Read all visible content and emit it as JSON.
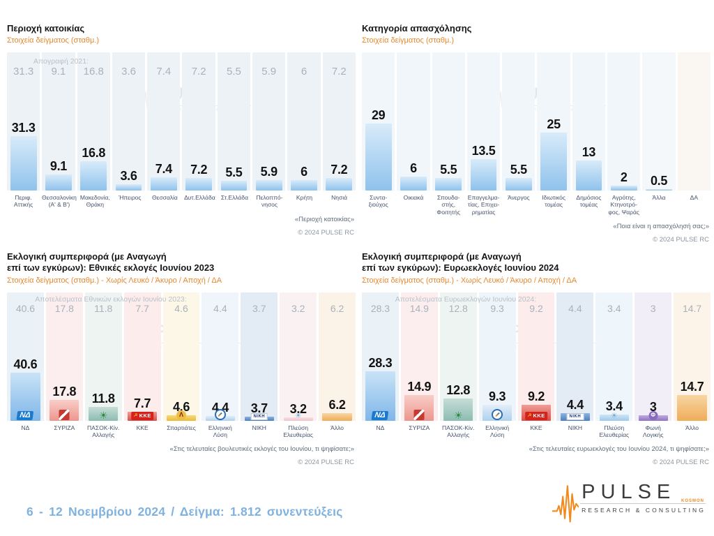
{
  "watermark": {
    "line1": "PULSE",
    "line2": "RESEARCH & CONSULTING"
  },
  "footer": {
    "survey_info": "6 - 12 Νοεμβρίου 2024 / Δείγμα: 1.812 συνεντεύξεις"
  },
  "logo": {
    "brand": "PULSE",
    "tagline": "RESEARCH & CONSULTING",
    "small_text": "KOSMON"
  },
  "party_logos": {
    "nd": {
      "label": "ΝΔ"
    },
    "syriza": {},
    "pasok": {
      "glyph": "☀"
    },
    "kke": {
      "label": "ΚΚΕ",
      "glyph": "☭"
    },
    "spartiates": {
      "label": "Λ"
    },
    "ellysi": {},
    "niki": {
      "label": "ΝΙΚΗ"
    },
    "plefsi": {
      "glyph": "☀"
    },
    "foni": {
      "label": "Φ"
    }
  },
  "chart_data": [
    {
      "type": "bar",
      "title": "Περιοχή κατοικίας",
      "subtitle": "Στοιχεία δείγματος (σταθμ.)",
      "reference_label": "Απογραφή 2021:",
      "categories": [
        "Περιφ.\nΑττικής",
        "Θεσσαλονίκη\n(Α' & Β')",
        "Μακεδονία,\nΘράκη",
        "Ήπειρος",
        "Θεσσαλία",
        "Δυτ.Ελλάδα",
        "Στ.Ελλάδα",
        "Πελοππό-\nνησος",
        "Κρήτη",
        "Νησιά"
      ],
      "values": [
        31.3,
        9.1,
        16.8,
        3.6,
        7.4,
        7.2,
        5.5,
        5.9,
        6,
        7.2
      ],
      "reference_values": [
        31.3,
        9.1,
        16.8,
        3.6,
        7.4,
        7.2,
        5.5,
        5.9,
        6,
        7.2
      ],
      "question": "«Περιοχή κατοικίας»",
      "copyright": "© 2024 PULSE RC",
      "ylim": [
        0,
        35
      ],
      "grid": false,
      "legend": false,
      "bar_colors": [
        [
          "#d8ebfa",
          "#8fc2ec"
        ]
      ],
      "column_tints": [
        "#edf2f6"
      ]
    },
    {
      "type": "bar",
      "title": "Κατηγορία απασχόλησης",
      "subtitle": "Στοιχεία δείγματος (σταθμ.)",
      "categories": [
        "Συντα-\nξιούχος",
        "Οικιακά",
        "Σπουδα-\nστής,\nΦοιτητής",
        "Επαγγελμα-\nτίας, Επιχει-\nρηματίας",
        "Άνεργος",
        "Ιδιωτικός\nτομέας",
        "Δημόσιος\nτομέας",
        "Αγρότης,\nΚτηνοτρό-\nφος, Ψαράς",
        "Άλλα",
        "ΔΑ"
      ],
      "values": [
        29,
        6,
        5.5,
        13.5,
        5.5,
        25,
        13,
        2,
        0.5,
        null
      ],
      "question": "«Ποια είναι η απασχόλησή σας;»",
      "copyright": "© 2024 PULSE RC",
      "ylim": [
        0,
        32
      ],
      "grid": false,
      "legend": false,
      "bar_colors": [
        [
          "#d8ebfa",
          "#8fc2ec"
        ]
      ],
      "column_tints": [
        "#f1f6fa",
        "#f1f6fa",
        "#f1f6fa",
        "#f1f6fa",
        "#f1f6fa",
        "#f1f6fa",
        "#f1f6fa",
        "#f1f6fa",
        "#f4f8fb",
        "#faf6f1"
      ]
    },
    {
      "type": "bar",
      "title": "Εκλογική συμπεριφορά (με Αναγωγή\nεπί των εγκύρων): Εθνικές εκλογές Ιουνίου 2023",
      "subtitle": "Στοιχεία δείγματος (σταθμ.) - Χωρίς Λευκό / Άκυρο / Αποχή / ΔΑ",
      "reference_label": "Αποτελέσματα Εθνικών εκλογών Ιουνίου 2023:",
      "categories": [
        "ΝΔ",
        "ΣΥΡΙΖΑ",
        "ΠΑΣΟΚ-Κίν.\nΑλλαγής",
        "ΚΚΕ",
        "Σπαρτιάτες",
        "Ελληνική\nΛύση",
        "ΝΙΚΗ",
        "Πλεύση\nΕλευθερίας",
        "Άλλο"
      ],
      "values": [
        40.6,
        17.8,
        11.8,
        7.7,
        4.6,
        4.4,
        3.7,
        3.2,
        6.2
      ],
      "reference_values": [
        40.6,
        17.8,
        11.8,
        7.7,
        4.6,
        4.4,
        3.7,
        3.2,
        6.2
      ],
      "logos": [
        "nd",
        "syriza",
        "pasok",
        "kke",
        "spartiates",
        "ellysi",
        "niki",
        "plefsi",
        null
      ],
      "question": "«Στις τελευταίες βουλευτικές εκλογές του Ιουνίου, τι ψηφίσατε;»",
      "copyright": "© 2024 PULSE RC",
      "ylim": [
        0,
        45
      ],
      "grid": false,
      "legend": false,
      "bar_colors": [
        [
          "#c9e3f7",
          "#7fb6e8"
        ],
        [
          "#f8cdc7",
          "#ec968e"
        ],
        [
          "#c6ddd7",
          "#8cbcb1"
        ],
        [
          "#ef9d97",
          "#d8514a"
        ],
        [
          "#f6d87e",
          "#edbb35"
        ],
        [
          "#e2eef8",
          "#aed1ec"
        ],
        [
          "#8fb4de",
          "#4a7fc0"
        ],
        [
          "#f6dfe2",
          "#efc3ca"
        ],
        [
          "#f7d6a4",
          "#efac58"
        ]
      ],
      "column_tints": [
        "#eaf1f7",
        "#fceeee",
        "#eef4f2",
        "#fcecec",
        "#fdf7e7",
        "#eff5fa",
        "#e3ebf4",
        "#faf1f3",
        "#fcf3e8"
      ]
    },
    {
      "type": "bar",
      "title": "Εκλογική συμπεριφορά (με Αναγωγή\nεπί των εγκύρων): Ευρωεκλογές Ιουνίου 2024",
      "subtitle": "Στοιχεία δείγματος (σταθμ.) - Χωρίς Λευκό / Άκυρο / Αποχή / ΔΑ",
      "reference_label": "Αποτελέσματα Ευρωεκλογών Ιουνίου 2024:",
      "categories": [
        "ΝΔ",
        "ΣΥΡΙΖΑ",
        "ΠΑΣΟΚ-Κίν.\nΑλλαγής",
        "Ελληνική\nΛύση",
        "ΚΚΕ",
        "ΝΙΚΗ",
        "Πλεύση\nΕλευθερίας",
        "Φωνή\nΛογικής",
        "Άλλο"
      ],
      "values": [
        28.3,
        14.9,
        12.8,
        9.3,
        9.2,
        4.4,
        3.4,
        3,
        14.7
      ],
      "reference_values": [
        28.3,
        14.9,
        12.8,
        9.3,
        9.2,
        4.4,
        3.4,
        3,
        14.7
      ],
      "logos": [
        "nd",
        "syriza",
        "pasok",
        "ellysi",
        "kke",
        "niki",
        "plefsi",
        "foni",
        null
      ],
      "question": "«Στις τελευταίες ευρωεκλογές του Ιουνίου 2024, τι ψηφίσατε;»",
      "copyright": "© 2024 PULSE RC",
      "ylim": [
        0,
        31
      ],
      "grid": false,
      "legend": false,
      "bar_colors": [
        [
          "#c9e3f7",
          "#7fb6e8"
        ],
        [
          "#f8cdc7",
          "#ec968e"
        ],
        [
          "#c6ddd7",
          "#8cbcb1"
        ],
        [
          "#e2eef8",
          "#aed1ec"
        ],
        [
          "#ef9d97",
          "#d8514a"
        ],
        [
          "#8fb4de",
          "#4a7fc0"
        ],
        [
          "#cfe4f5",
          "#9ec9ea"
        ],
        [
          "#c0aade",
          "#8f72c2"
        ],
        [
          "#f7d6a4",
          "#efac58"
        ]
      ],
      "column_tints": [
        "#eaf1f7",
        "#fceeee",
        "#eef4f2",
        "#edf4fa",
        "#fcecec",
        "#e3ebf4",
        "#eef5fb",
        "#f1eef7",
        "#fdf4e9"
      ]
    }
  ]
}
